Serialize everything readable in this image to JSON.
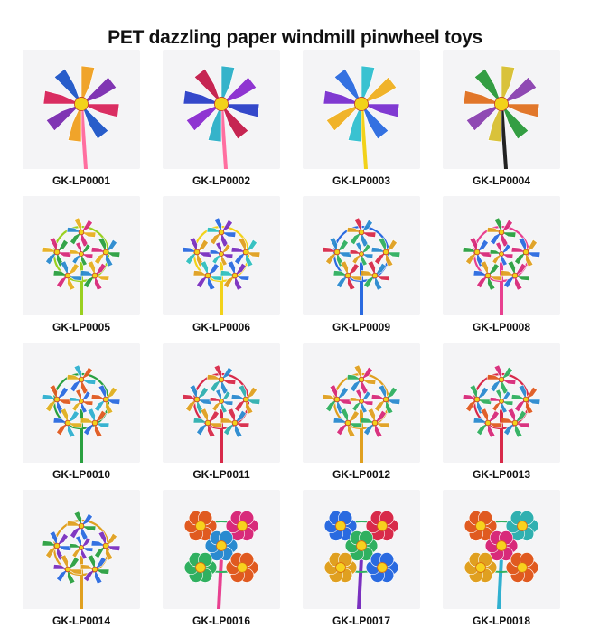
{
  "title": "PET dazzling paper windmill pinwheel toys",
  "items": [
    {
      "code": "GK-LP0001",
      "kind": "single",
      "colors": [
        "#d8235a",
        "#1e55c8",
        "#f0a020",
        "#7a2bb0"
      ],
      "stick": "#ff6fa0"
    },
    {
      "code": "GK-LP0002",
      "kind": "single",
      "colors": [
        "#2a3fc8",
        "#c41a4a",
        "#2bb0c8",
        "#8a2bd0"
      ],
      "stick": "#ff6fa0"
    },
    {
      "code": "GK-LP0003",
      "kind": "single",
      "colors": [
        "#7a30d0",
        "#2a6ae0",
        "#30c0d0",
        "#f0b020"
      ],
      "stick": "#f2d21a"
    },
    {
      "code": "GK-LP0004",
      "kind": "single",
      "colors": [
        "#e07020",
        "#2a9a3a",
        "#d8c030",
        "#8a40b0"
      ],
      "stick": "#222222"
    },
    {
      "code": "GK-LP0005",
      "kind": "multi",
      "colors": [
        "#e8b020",
        "#d82a7a",
        "#2aa040",
        "#2a8ad0"
      ],
      "stick": "#9ad020"
    },
    {
      "code": "GK-LP0006",
      "kind": "multi",
      "colors": [
        "#2a6ae0",
        "#7a30c0",
        "#e0a020",
        "#30c0c0"
      ],
      "stick": "#f2d21a"
    },
    {
      "code": "GK-LP0009",
      "kind": "multi",
      "colors": [
        "#d82a4a",
        "#2a8ad0",
        "#30b060",
        "#e0a020"
      ],
      "stick": "#2a6ae0"
    },
    {
      "code": "GK-LP0008",
      "kind": "multi",
      "colors": [
        "#2aa040",
        "#d82a7a",
        "#2a6ae0",
        "#e0a020"
      ],
      "stick": "#e84090"
    },
    {
      "code": "GK-LP0010",
      "kind": "multi",
      "colors": [
        "#30b0d0",
        "#e05a20",
        "#2a6ae0",
        "#e0b020"
      ],
      "stick": "#2aa040"
    },
    {
      "code": "GK-LP0011",
      "kind": "multi",
      "colors": [
        "#d82a4a",
        "#2a8ad0",
        "#30b0b0",
        "#e0a020"
      ],
      "stick": "#d82a4a"
    },
    {
      "code": "GK-LP0012",
      "kind": "multi",
      "colors": [
        "#e0a020",
        "#d82a7a",
        "#2a8ad0",
        "#30b060"
      ],
      "stick": "#e0a020"
    },
    {
      "code": "GK-LP0013",
      "kind": "multi",
      "colors": [
        "#d82a7a",
        "#30b060",
        "#2a8ad0",
        "#e05a20"
      ],
      "stick": "#d82a4a"
    },
    {
      "code": "GK-LP0014",
      "kind": "multi",
      "colors": [
        "#2aa040",
        "#2a6ae0",
        "#7a30c0",
        "#e0a020"
      ],
      "stick": "#e0a020"
    },
    {
      "code": "GK-LP0016",
      "kind": "flower",
      "colors": [
        "#e05a20",
        "#d82a7a",
        "#2a8ad0",
        "#30b060"
      ],
      "stick": "#e84090"
    },
    {
      "code": "GK-LP0017",
      "kind": "flower",
      "colors": [
        "#2a6ae0",
        "#d82a4a",
        "#30b060",
        "#e0a020"
      ],
      "stick": "#7a30c0"
    },
    {
      "code": "GK-LP0018",
      "kind": "flower",
      "colors": [
        "#e05a20",
        "#30b0b0",
        "#d82a7a",
        "#e0a020"
      ],
      "stick": "#30b0d0"
    }
  ]
}
